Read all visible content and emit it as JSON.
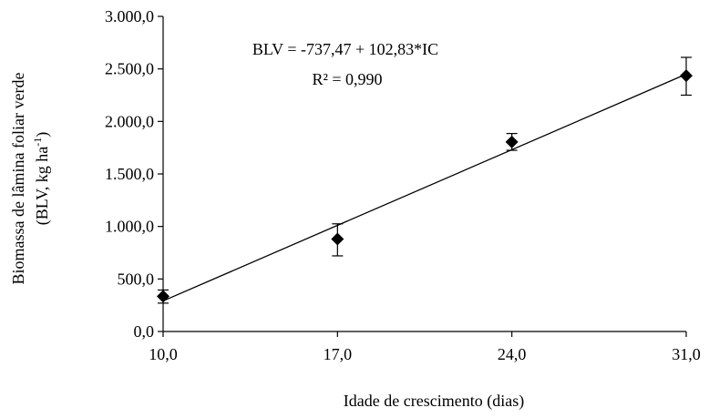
{
  "chart_data": {
    "type": "scatter",
    "xlabel": "Idade de crescimento (dias)",
    "ylabel_line1": "Biomassa de lâmina foliar verde",
    "ylabel_line2_prefix": "(BLV, kg ha",
    "ylabel_line2_exponent": "-1",
    "ylabel_line2_suffix": ")",
    "x_ticks": [
      10.0,
      17.0,
      24.0,
      31.0
    ],
    "x_tick_labels": [
      "10,0",
      "17,0",
      "24,0",
      "31,0"
    ],
    "y_ticks": [
      0,
      500,
      1000,
      1500,
      2000,
      2500,
      3000
    ],
    "y_tick_labels": [
      "0,0",
      "500,0",
      "1.000,0",
      "1.500,0",
      "2.000,0",
      "2.500,0",
      "3.000,0"
    ],
    "xlim": [
      10.0,
      31.0
    ],
    "ylim": [
      0,
      3000
    ],
    "grid": false,
    "marker": "diamond",
    "marker_color": "#000000",
    "points": [
      {
        "x": 10.0,
        "y": 335,
        "err_low": 270,
        "err_high": 395
      },
      {
        "x": 17.0,
        "y": 880,
        "err_low": 720,
        "err_high": 1025
      },
      {
        "x": 24.0,
        "y": 1805,
        "err_low": 1725,
        "err_high": 1885
      },
      {
        "x": 31.0,
        "y": 2435,
        "err_low": 2250,
        "err_high": 2610
      }
    ],
    "trendline": {
      "intercept": -737.47,
      "slope": 102.83,
      "x_range": [
        10.0,
        31.0
      ],
      "equation": "BLV = -737,47 + 102,83*IC",
      "r_squared": "R² = 0,990",
      "color": "#000000"
    }
  }
}
